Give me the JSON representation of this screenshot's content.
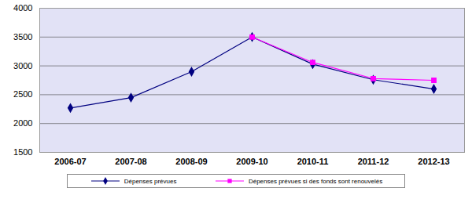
{
  "chart_data": {
    "type": "line",
    "categories": [
      "2006-07",
      "2007-08",
      "2008-09",
      "2009-10",
      "2010-11",
      "2011-12",
      "2012-13"
    ],
    "series": [
      {
        "name": "Dépenses prévues",
        "color": "#000080",
        "marker": "diamond",
        "line_style": "solid",
        "values": [
          2270,
          2450,
          2900,
          3500,
          3030,
          2760,
          2600
        ]
      },
      {
        "name": "Dépenses prévues si des fonds sont renouvelés",
        "color": "#ff00ff",
        "marker": "square",
        "line_style": "solid",
        "values": [
          null,
          null,
          null,
          3500,
          3060,
          2780,
          2750
        ]
      }
    ],
    "ylim": [
      1500,
      4000
    ],
    "yticks": [
      1500,
      2000,
      2500,
      3000,
      3500,
      4000
    ],
    "grid": true,
    "legend": "bottom"
  }
}
